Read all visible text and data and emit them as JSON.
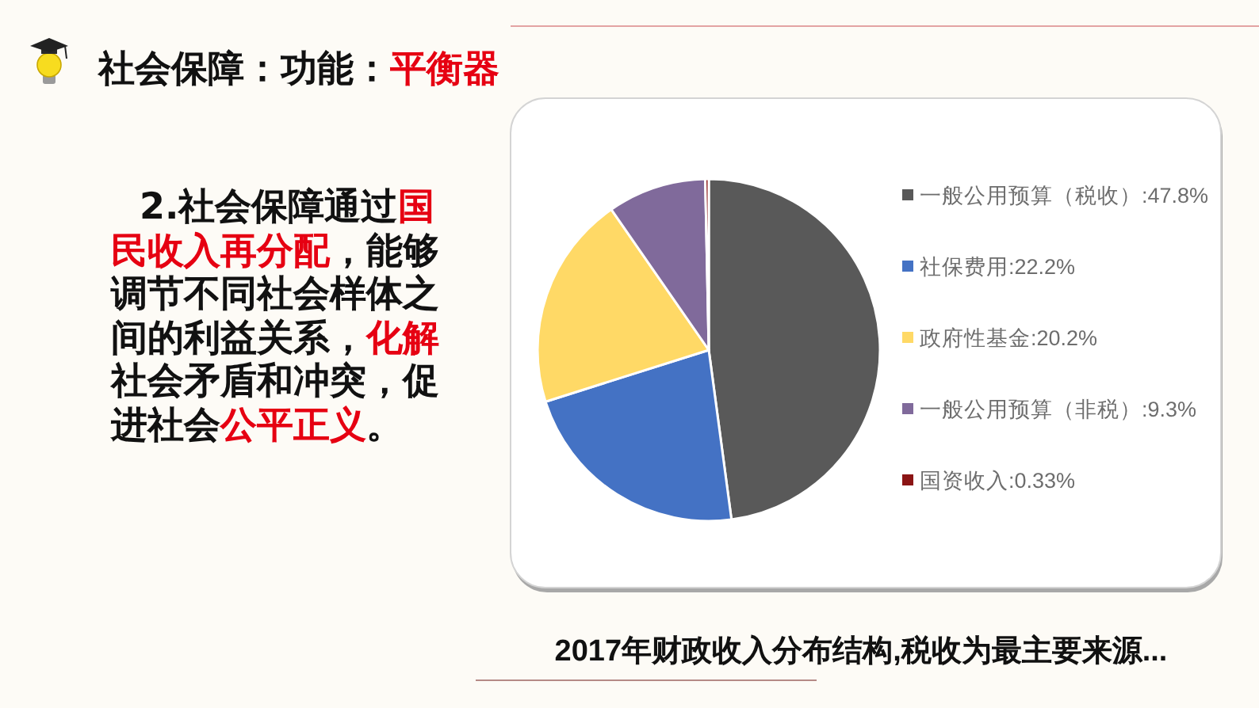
{
  "chart_data": {
    "type": "pie",
    "title": "社会保障：功能：**平衡器**",
    "categories": [
      "一般公用预算（税收）:47.8%",
      "社保费用:22.2%",
      "政府性基金:20.2%",
      "一般公用预算（非税）:9.3%",
      "国资收入:0.33%"
    ],
    "values": [
      47.8,
      22.2,
      20.2,
      9.3,
      0.33
    ],
    "colors": [
      "#595959",
      "#4472c4",
      "#ffd966",
      "#806a9b",
      "#8b1414"
    ],
    "legend": "right",
    "annotations": [
      "2.社会保障通过**国民收入再分配**，能够调节不同社会样体之间的利益关系，**化解**社会矛盾和冲突，促进社会**公平正义**。",
      "2017年财政收入分布结构,税收为最主要来源..."
    ]
  }
}
